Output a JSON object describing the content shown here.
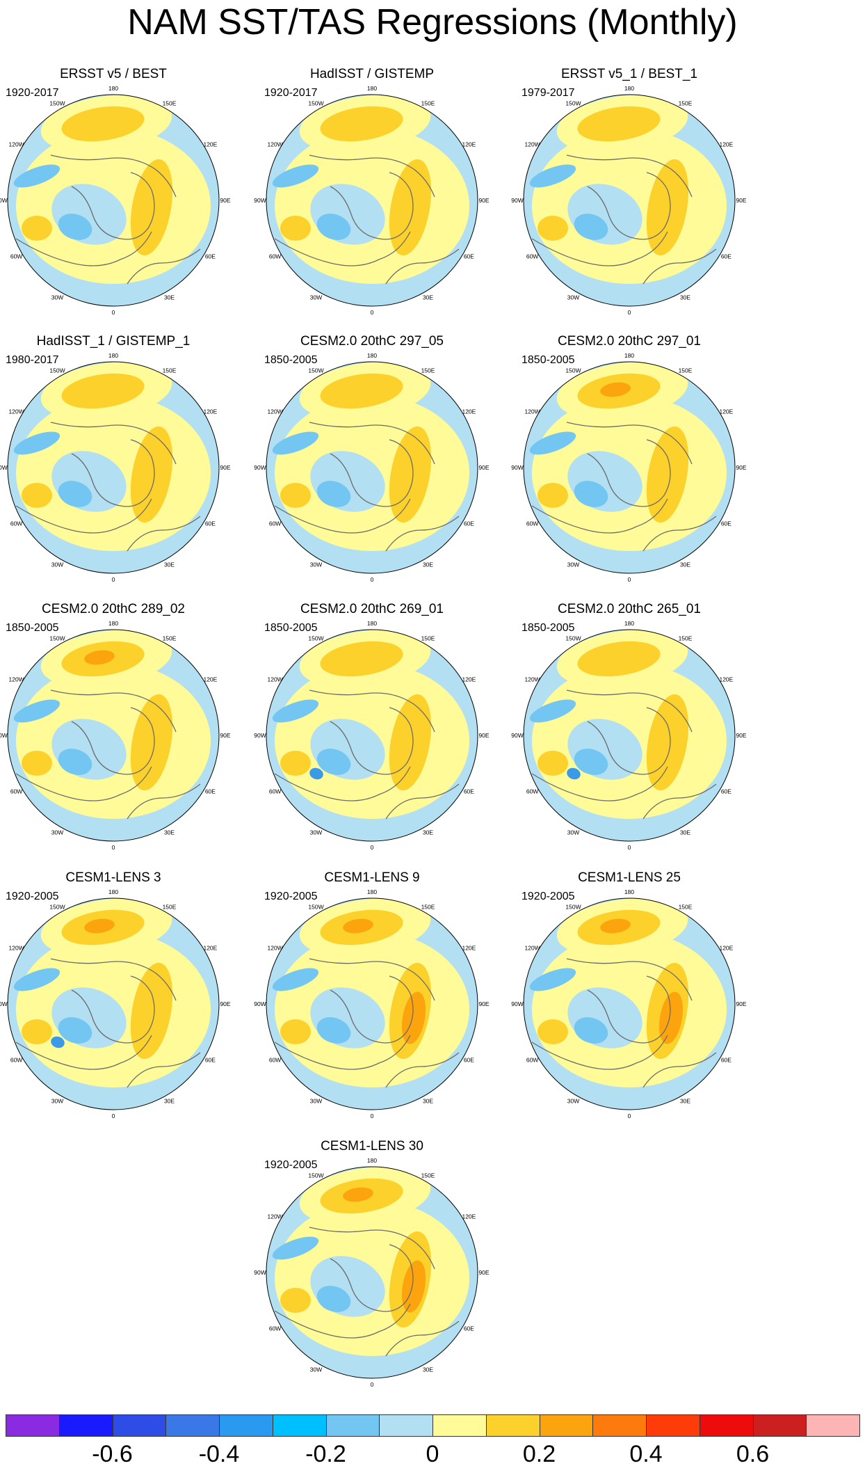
{
  "title": "NAM SST/TAS Regressions (Monthly)",
  "lon_labels": [
    "180",
    "150E",
    "120E",
    "90E",
    "60E",
    "30E",
    "0",
    "30W",
    "60W",
    "90W",
    "120W",
    "150W"
  ],
  "panels": [
    {
      "title": "ERSST v5 / BEST",
      "period": "1920-2017"
    },
    {
      "title": "HadISST / GISTEMP",
      "period": "1920-2017"
    },
    {
      "title": "ERSST v5_1 / BEST_1",
      "period": "1979-2017"
    },
    {
      "title": "HadISST_1 / GISTEMP_1",
      "period": "1980-2017"
    },
    {
      "title": "CESM2.0 20thC 297_05",
      "period": "1850-2005"
    },
    {
      "title": "CESM2.0 20thC 297_01",
      "period": "1850-2005"
    },
    {
      "title": "CESM2.0 20thC 289_02",
      "period": "1850-2005"
    },
    {
      "title": "CESM2.0 20thC 269_01",
      "period": "1850-2005"
    },
    {
      "title": "CESM2.0 20thC 265_01",
      "period": "1850-2005"
    },
    {
      "title": "CESM1-LENS 3",
      "period": "1920-2005"
    },
    {
      "title": "CESM1-LENS 9",
      "period": "1920-2005"
    },
    {
      "title": "CESM1-LENS 25",
      "period": "1920-2005"
    },
    {
      "title": "CESM1-LENS 30",
      "period": "1920-2005"
    }
  ],
  "colorbar": {
    "colors": [
      "#8a2be2",
      "#1a1aff",
      "#2e4de6",
      "#3a78e8",
      "#2a9af0",
      "#00bfff",
      "#74c6f2",
      "#b3dff2",
      "#fefb98",
      "#fdd12b",
      "#fba40d",
      "#fd7a0c",
      "#fd3c0a",
      "#ee0b0b",
      "#cc1f1f",
      "#fcb4b4"
    ],
    "ticks": [
      "-0.6",
      "-0.4",
      "-0.2",
      "0",
      "0.2",
      "0.4",
      "0.6"
    ]
  },
  "map_colors": {
    "ocean_neg": "#b3dff2",
    "neg_mid": "#74c6f2",
    "neg_strong": "#3a9ae8",
    "pos_weak": "#fefb98",
    "pos_mid": "#fdd12b",
    "pos_strong": "#fba40d",
    "coast": "#6b6b6b"
  }
}
